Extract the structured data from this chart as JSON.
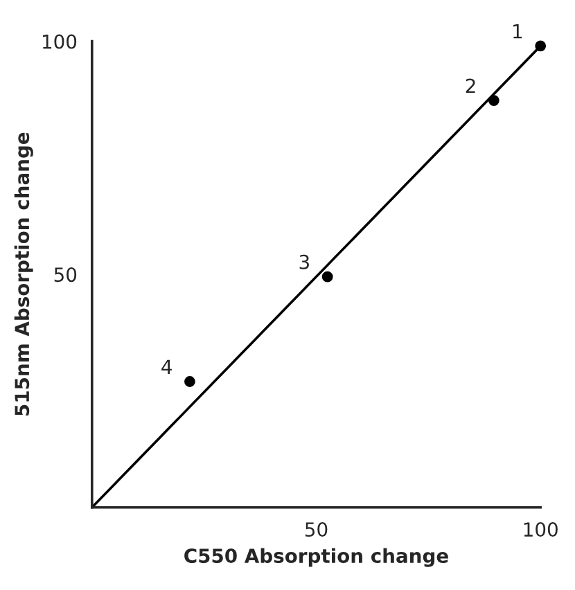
{
  "chart_data": {
    "type": "scatter",
    "xlabel": "C550 Absorption change",
    "ylabel": "515nm Absorption change",
    "xlim": [
      0,
      100
    ],
    "ylim": [
      0,
      100
    ],
    "xticks": [
      50,
      100
    ],
    "yticks": [
      50,
      100
    ],
    "grid": false,
    "legend": false,
    "marker": "circle",
    "series": [
      {
        "color": "#000000",
        "x": [
          100,
          89.6,
          52.5,
          21.8
        ],
        "values": [
          99,
          87.3,
          49.5,
          27
        ]
      },
      {
        "type": "line",
        "color": "#000000",
        "x": [
          0,
          100
        ],
        "values": [
          0,
          99
        ],
        "marker": "none",
        "line_style": "solid"
      }
    ],
    "annotations": [
      {
        "text": "1",
        "x": 100,
        "y": 99
      },
      {
        "text": "2",
        "x": 89.6,
        "y": 87.3
      },
      {
        "text": "3",
        "x": 52.5,
        "y": 49.5
      },
      {
        "text": "4",
        "x": 21.8,
        "y": 27
      }
    ]
  }
}
